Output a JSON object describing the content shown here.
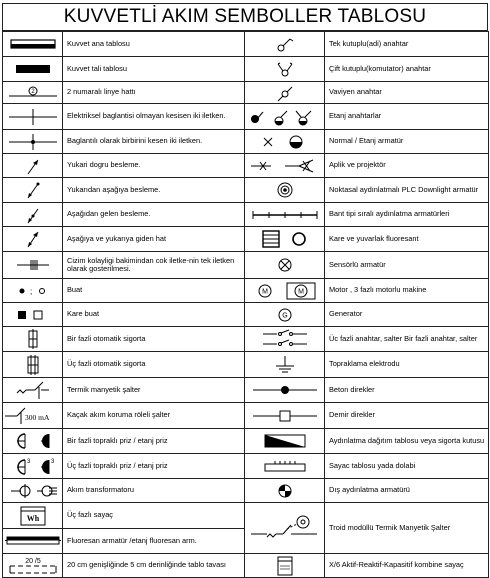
{
  "title": "KUVVETLİ AKIM SEMBOLLER TABLOSU",
  "rows": [
    {
      "left": "Kuvvet ana tablosu",
      "left_icon": "kuvvet-ana-tablosu-icon",
      "right": "Tek kutuplu(adi) anahtar",
      "right_icon": "tek-kutuplu-anahtar-icon"
    },
    {
      "left": "Kuvvet tali tablosu",
      "left_icon": "kuvvet-tali-tablosu-icon",
      "right": "Çift kutuplu(komutator) anahtar",
      "right_icon": "cift-kutuplu-anahtar-icon"
    },
    {
      "left": "2 numaralı linye hattı",
      "left_icon": "linye-hatti-icon",
      "right": "Vaviyen anahtar",
      "right_icon": "vaviyen-anahtar-icon"
    },
    {
      "left": "Elektriksel baglantisi olmayan kesisen iki iletken.",
      "left_icon": "crossing-no-connection-icon",
      "right": "Etanj anahtarlar",
      "right_icon": "etanj-anahtar-icon"
    },
    {
      "left": "Baglantılı olarak birbirini kesen iki iletken.",
      "left_icon": "crossing-connected-icon",
      "right": "Normal / Etanj armatür",
      "right_icon": "normal-etanj-armatur-icon"
    },
    {
      "left": "Yukari dogru besleme.",
      "left_icon": "upward-feed-icon",
      "right": "Aplik ve projektör",
      "right_icon": "aplik-projektor-icon"
    },
    {
      "left": "Yukarıdan aşağıya besleme.",
      "left_icon": "top-down-feed-icon",
      "right": "Noktasal aydınlatmalı PLC Downlight armatür",
      "right_icon": "downlight-icon"
    },
    {
      "left": "Aşağıdan gelen besleme.",
      "left_icon": "from-below-feed-icon",
      "right": "Bant tipi sıralı aydınlatma armatürleri",
      "right_icon": "band-lighting-icon"
    },
    {
      "left": "Aşağıya ve yukarıya giden hat",
      "left_icon": "up-down-line-icon",
      "right": "Kare ve yuvarlak fluoresant",
      "right_icon": "square-round-fluorescent-icon"
    },
    {
      "left": "Cizim kolayligi bakimindan cok iletke-nin tek iletken olarak gosterilmesi.",
      "left_icon": "multi-conductor-icon",
      "right": "Sensörlü armatür",
      "right_icon": "sensor-armatur-icon"
    },
    {
      "left": "Buat",
      "left_icon": "buat-icon",
      "right": "Motor , 3 fazlı motorlu makine",
      "right_icon": "motor-icon"
    },
    {
      "left": "Kare buat",
      "left_icon": "kare-buat-icon",
      "right": "Generator",
      "right_icon": "generator-icon"
    },
    {
      "left": "Bir fazli otomatik sigorta",
      "left_icon": "single-phase-breaker-icon",
      "right": "Üc fazli anahtar, salter Bir fazli anahtar, salter",
      "right_icon": "switch-salter-icon"
    },
    {
      "left": "Üç fazli otomatik sigorta",
      "left_icon": "three-phase-breaker-icon",
      "right": "Topraklama elektrodu",
      "right_icon": "ground-electrode-icon"
    },
    {
      "left": "Termik manyetik şalter",
      "left_icon": "thermal-magnetic-switch-icon",
      "right": "Beton direkler",
      "right_icon": "concrete-pole-icon"
    },
    {
      "left": "Kaçak akım koruma röleli şalter",
      "left_icon": "rcd-switch-icon",
      "left_sym_text": "300 mA",
      "right": "Demir direkler",
      "right_icon": "iron-pole-icon"
    },
    {
      "left": "Bir fazli topraklı priz / etanj priz",
      "left_icon": "single-phase-socket-icon",
      "right": "Aydınlatma dağıtım tablosu veya sigorta kutusu",
      "right_icon": "distribution-board-icon"
    },
    {
      "left": "Üç fazli topraklı priz / etanj priz",
      "left_icon": "three-phase-socket-icon",
      "left_sym_text": "3",
      "right": "Sayac tablosu yada dolabi",
      "right_icon": "meter-cabinet-icon"
    },
    {
      "left": "Akım transformatoru",
      "left_icon": "current-transformer-icon",
      "right": "Dış aydınlatma armatürü",
      "right_icon": "outdoor-lighting-icon"
    },
    {
      "left": "Üç fazlı sayaç",
      "left_icon": "three-phase-meter-icon",
      "left_sym_text": "Wh",
      "right": "Troid modüllü Termik Manyetik Şalter",
      "right_icon": "toroid-switch-icon"
    },
    {
      "left": "Fluoresan armatür /etanj fluoresan arm.",
      "left_icon": "fluorescent-armature-icon",
      "right": "",
      "right_icon": ""
    },
    {
      "left": "20 cm genişliğinde 5 cm derinliğinde tablo tavası",
      "left_icon": "cable-tray-icon",
      "left_sym_text": "20 /5",
      "right": "X/6 Aktif-Reaktif-Kapasitif kombine sayaç",
      "right_icon": "combined-meter-icon"
    }
  ]
}
